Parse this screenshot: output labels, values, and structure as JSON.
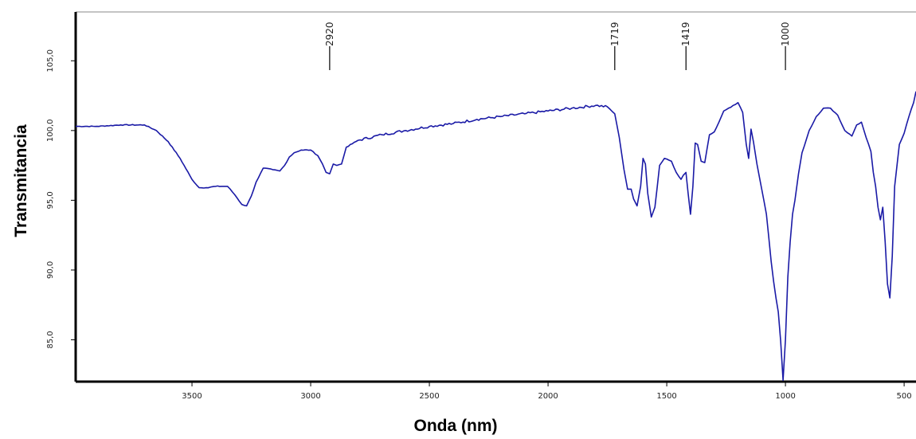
{
  "chart_data": {
    "type": "line",
    "title": "",
    "xlabel": "Onda (nm)",
    "ylabel": "Transmitancia",
    "xlim": [
      3990,
      450
    ],
    "ylim": [
      82,
      108.5
    ],
    "x_reversed": true,
    "grid": false,
    "line_color": "#1a1aa6",
    "x_ticks": [
      3500,
      3000,
      2500,
      2000,
      1500,
      1000,
      500
    ],
    "x_tick_labels": [
      "3500",
      "3000",
      "2500",
      "2000",
      "1500",
      "1000",
      "500"
    ],
    "y_ticks": [
      85,
      90,
      95,
      100,
      105
    ],
    "y_tick_labels": [
      "85,0",
      "90,0",
      "95,0",
      "100,0",
      "105,0"
    ],
    "peak_annotations": [
      {
        "x": 2920,
        "label": "2920"
      },
      {
        "x": 1719,
        "label": "1719"
      },
      {
        "x": 1419,
        "label": "1419"
      },
      {
        "x": 1000,
        "label": "1000"
      }
    ],
    "series": [
      {
        "x": [
          3990,
          3900,
          3800,
          3700,
          3650,
          3600,
          3550,
          3500,
          3470,
          3440,
          3400,
          3350,
          3320,
          3290,
          3270,
          3250,
          3230,
          3200,
          3160,
          3130,
          3110,
          3090,
          3070,
          3040,
          3000,
          2970,
          2950,
          2935,
          2920,
          2905,
          2890,
          2870,
          2850,
          2800,
          2700,
          2600,
          2500,
          2400,
          2300,
          2200,
          2100,
          2000,
          1900,
          1800,
          1750,
          1719,
          1700,
          1680,
          1665,
          1650,
          1640,
          1625,
          1610,
          1600,
          1590,
          1580,
          1565,
          1550,
          1530,
          1510,
          1480,
          1460,
          1440,
          1430,
          1419,
          1410,
          1400,
          1390,
          1380,
          1370,
          1355,
          1340,
          1320,
          1300,
          1280,
          1260,
          1240,
          1220,
          1200,
          1180,
          1165,
          1155,
          1145,
          1135,
          1120,
          1100,
          1080,
          1060,
          1050,
          1040,
          1030,
          1020,
          1010,
          1000,
          990,
          980,
          970,
          960,
          945,
          930,
          900,
          870,
          840,
          810,
          780,
          750,
          720,
          700,
          680,
          660,
          640,
          630,
          620,
          610,
          600,
          590,
          580,
          570,
          560,
          550,
          540,
          520,
          500,
          480,
          460,
          450
        ],
        "y": [
          100.3,
          100.3,
          100.4,
          100.4,
          100.0,
          99.2,
          98.0,
          96.5,
          95.9,
          95.9,
          96.0,
          96.0,
          95.4,
          94.7,
          94.6,
          95.3,
          96.3,
          97.3,
          97.2,
          97.1,
          97.5,
          98.1,
          98.4,
          98.6,
          98.6,
          98.2,
          97.6,
          97.0,
          96.9,
          97.6,
          97.5,
          97.6,
          98.8,
          99.3,
          99.7,
          100.0,
          100.3,
          100.5,
          100.8,
          101.0,
          101.2,
          101.4,
          101.6,
          101.8,
          101.7,
          101.2,
          99.5,
          97.2,
          95.8,
          95.8,
          95.1,
          94.6,
          96.0,
          98.0,
          97.6,
          95.5,
          93.8,
          94.5,
          97.5,
          98.0,
          97.8,
          97.0,
          96.5,
          96.8,
          97.0,
          95.5,
          94.0,
          96.0,
          99.1,
          99.0,
          97.8,
          97.7,
          99.7,
          99.9,
          100.6,
          101.4,
          101.6,
          101.8,
          102.0,
          101.3,
          99.0,
          98.0,
          100.1,
          99.2,
          97.6,
          95.8,
          94.0,
          90.6,
          89.2,
          88.0,
          87.0,
          84.9,
          82.1,
          85.0,
          89.5,
          92.0,
          94.0,
          95.0,
          96.9,
          98.4,
          100.0,
          101.0,
          101.6,
          101.6,
          101.1,
          100.0,
          99.6,
          100.4,
          100.6,
          99.5,
          98.5,
          97.0,
          96.0,
          94.5,
          93.6,
          94.5,
          92.0,
          89.0,
          88.0,
          91.0,
          96.0,
          99.0,
          99.8,
          101.0,
          102.0,
          102.8
        ]
      }
    ]
  }
}
